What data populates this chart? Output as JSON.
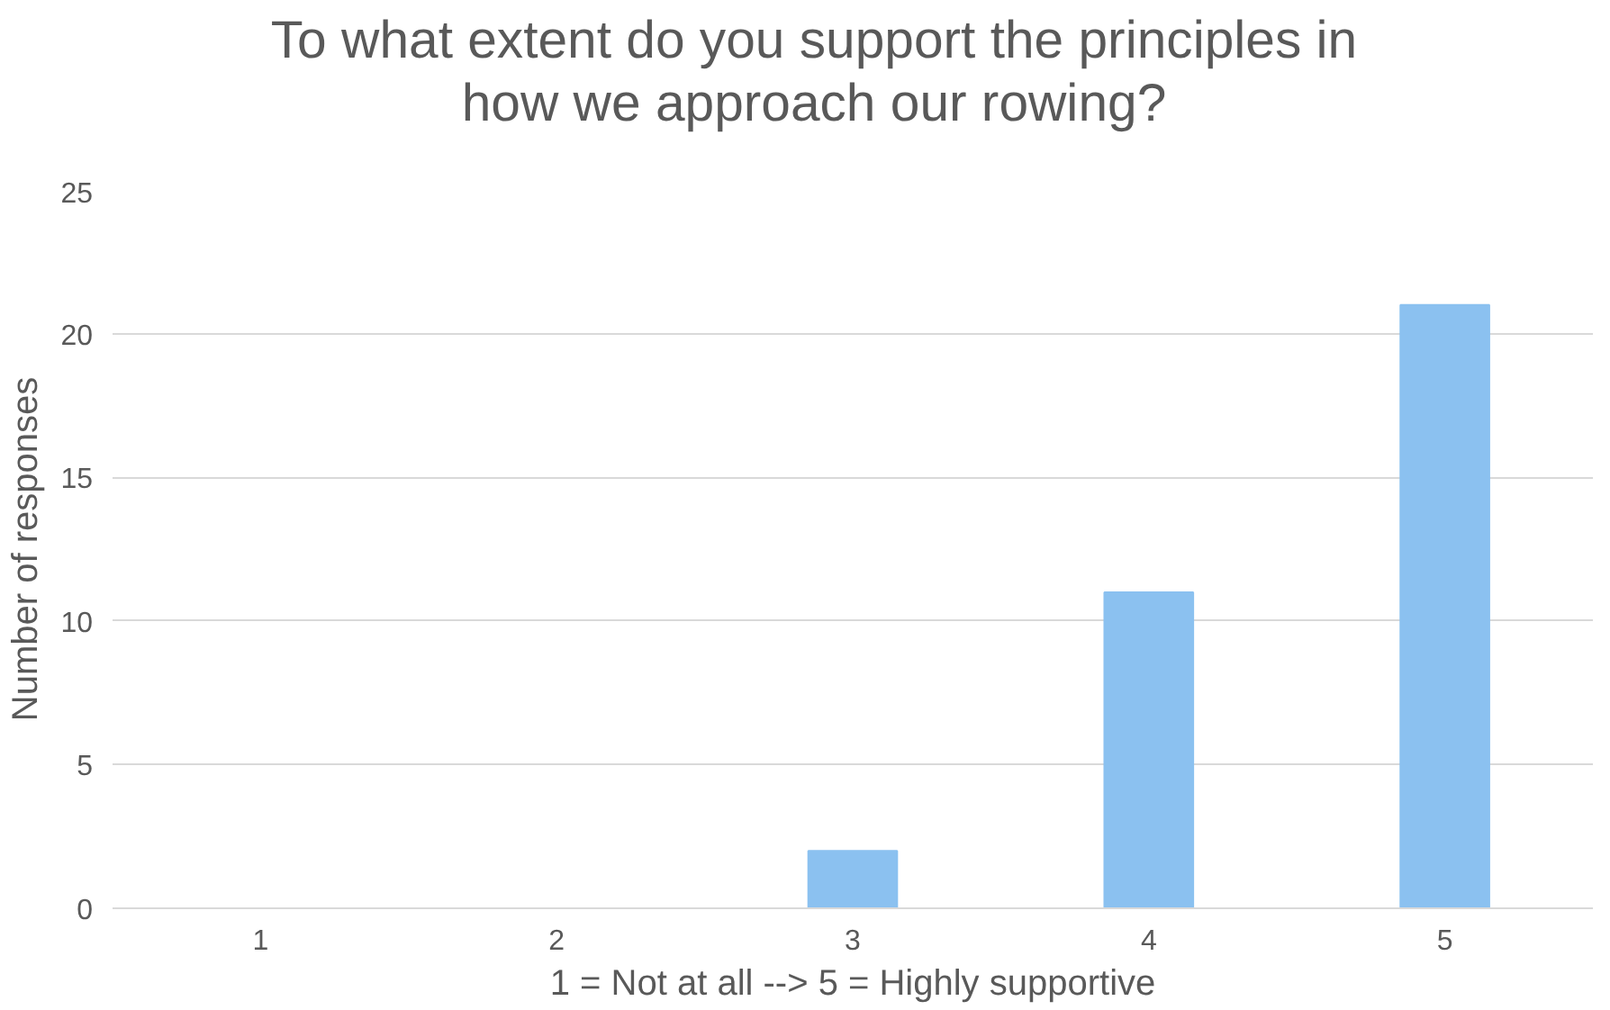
{
  "chart_data": {
    "type": "bar",
    "title": "To what extent do you support the principles in\nhow we approach our rowing?",
    "xlabel": "1 = Not at all --> 5 = Highly supportive",
    "ylabel": "Number of responses",
    "categories": [
      "1",
      "2",
      "3",
      "4",
      "5"
    ],
    "series": [
      {
        "color": "#8bc1f0",
        "values": [
          0,
          0,
          2,
          11,
          21
        ]
      }
    ],
    "ylim": [
      0,
      25
    ],
    "yticks": [
      0,
      5,
      10,
      15,
      20,
      25
    ],
    "grid": "y"
  }
}
